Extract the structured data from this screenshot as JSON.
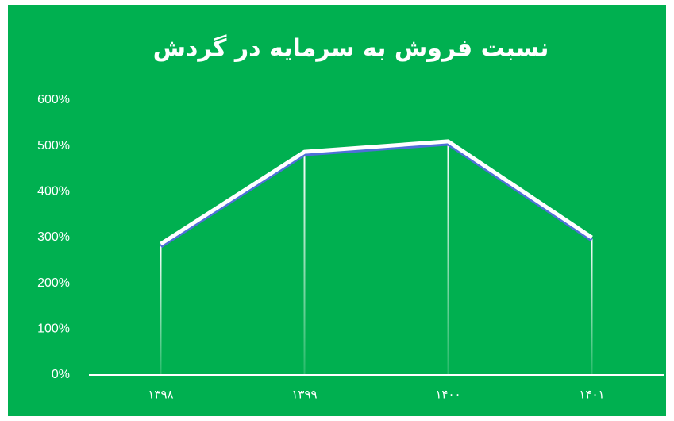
{
  "chart_data": {
    "type": "line",
    "title": "نسبت فروش به سرمایه در گردش",
    "categories": [
      "۱۳۹۸",
      "۱۳۹۹",
      "۱۴۰۰",
      "۱۴۰۱"
    ],
    "values": [
      286,
      487,
      510,
      300
    ],
    "color": "#ffffff",
    "ylim": [
      0,
      600
    ],
    "yticks": [
      {
        "value": 0,
        "label": "0%"
      },
      {
        "value": 100,
        "label": "100%"
      },
      {
        "value": 200,
        "label": "200%"
      },
      {
        "value": 300,
        "label": "300%"
      },
      {
        "value": 400,
        "label": "400%"
      },
      {
        "value": 500,
        "label": "500%"
      },
      {
        "value": 600,
        "label": "600%"
      }
    ],
    "grid": false
  }
}
